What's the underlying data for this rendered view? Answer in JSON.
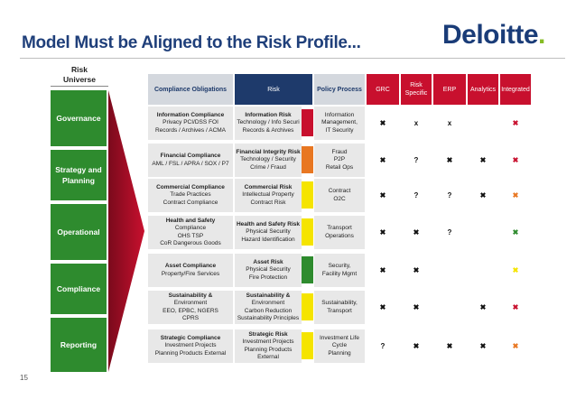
{
  "title": "Model Must be Aligned to the Risk Profile...",
  "logo_text": "Deloitte",
  "logo_dot": ".",
  "page_number": "15",
  "universe": {
    "label_line1": "Risk",
    "label_line2": "Universe",
    "items": [
      {
        "label": "Governance"
      },
      {
        "label": "Strategy and Planning"
      },
      {
        "label": "Operational"
      },
      {
        "label": "Compliance"
      },
      {
        "label": "Reporting"
      }
    ]
  },
  "headers": {
    "compliance": "Compliance Obligations",
    "risk": "Risk",
    "policy": "Policy Process",
    "grc": "GRC",
    "risk_specific": "Risk Specific",
    "erp": "ERP",
    "analytics": "Analytics",
    "integrated": "Integrated"
  },
  "colors": {
    "red": "#c8102e",
    "orange": "#e87722",
    "yellow": "#f5e400",
    "green": "#2e8b2e",
    "navy": "#1e3a6b"
  },
  "rows": [
    {
      "compliance": [
        "Information Compliance",
        "Privacy PCI/DSS  FOI",
        "Records / Archives / ACMA"
      ],
      "risk": [
        "Information Risk",
        "Technology / Info Securi",
        "Records & Archives"
      ],
      "rating": "red",
      "policy": [
        "Information",
        "Management,",
        "IT Security"
      ],
      "grc": "✖",
      "risk_specific": "x",
      "erp": "x",
      "analytics": "",
      "integrated": "✖",
      "integrated_color": "red"
    },
    {
      "compliance": [
        "Financial Compliance",
        "AML / FSL / APRA / SOX / P7"
      ],
      "risk": [
        "Financial Integrity Risk",
        "Technology / Security",
        "Crime / Fraud"
      ],
      "rating": "orange",
      "policy": [
        "Fraud",
        "P2P",
        "Retail Ops"
      ],
      "grc": "✖",
      "risk_specific": "?",
      "erp": "✖",
      "analytics": "✖",
      "integrated": "✖",
      "integrated_color": "red"
    },
    {
      "compliance": [
        "Commercial Compliance",
        "Trade Practices",
        "Contract Compliance"
      ],
      "risk": [
        "Commercial Risk",
        "Intellectual Property",
        "Contract Risk"
      ],
      "rating": "yellow",
      "policy": [
        "Contract",
        "O2C"
      ],
      "grc": "✖",
      "risk_specific": "?",
      "erp": "?",
      "analytics": "✖",
      "integrated": "✖",
      "integrated_color": "orange"
    },
    {
      "compliance": [
        "Health and Safety",
        "Compliance",
        "OHS  TSP",
        "CoR   Dangerous Goods"
      ],
      "risk": [
        "Health and Safety Risk",
        "Physical Security",
        "Hazard Identification"
      ],
      "rating": "yellow",
      "policy": [
        "Transport",
        "Operations"
      ],
      "grc": "✖",
      "risk_specific": "✖",
      "erp": "?",
      "analytics": "",
      "integrated": "✖",
      "integrated_color": "green"
    },
    {
      "compliance": [
        "Asset Compliance",
        "Property/Fire Services"
      ],
      "risk": [
        "Asset Risk",
        "Physical Security",
        "Fire Protection"
      ],
      "rating": "green",
      "policy": [
        "Security,",
        "Facility Mgmt"
      ],
      "grc": "✖",
      "risk_specific": "✖",
      "erp": "",
      "analytics": "",
      "integrated": "✖",
      "integrated_color": "yellow"
    },
    {
      "compliance": [
        "Sustainability &",
        "Environment",
        "EEO, EPBC, NGERS",
        "CPRS"
      ],
      "risk": [
        "Sustainability &",
        "Environment",
        "Carbon Reduction",
        "Sustainability Principles"
      ],
      "rating": "yellow",
      "policy": [
        "Sustainability,",
        "Transport"
      ],
      "grc": "✖",
      "risk_specific": "✖",
      "erp": "",
      "analytics": "✖",
      "integrated": "✖",
      "integrated_color": "red"
    },
    {
      "compliance": [
        "Strategic Compliance",
        "Investment Projects",
        "Planning  Products  External"
      ],
      "risk": [
        "Strategic Risk",
        "Investment  Projects",
        "Planning  Products",
        "External"
      ],
      "rating": "yellow",
      "policy": [
        "Investment Life",
        "Cycle",
        "Planning"
      ],
      "grc": "?",
      "risk_specific": "✖",
      "erp": "✖",
      "analytics": "✖",
      "integrated": "✖",
      "integrated_color": "orange"
    }
  ]
}
